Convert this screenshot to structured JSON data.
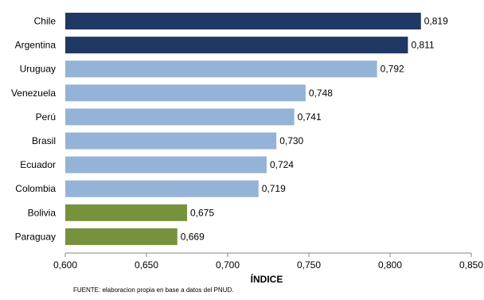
{
  "chart_data": {
    "type": "bar",
    "orientation": "horizontal",
    "categories": [
      "Chile",
      "Argentina",
      "Uruguay",
      "Venezuela",
      "Perú",
      "Brasil",
      "Ecuador",
      "Colombia",
      "Bolivia",
      "Paraguay"
    ],
    "values": [
      0.819,
      0.811,
      0.792,
      0.748,
      0.741,
      0.73,
      0.724,
      0.719,
      0.675,
      0.669
    ],
    "value_labels": [
      "0,819",
      "0,811",
      "0,792",
      "0,748",
      "0,741",
      "0,730",
      "0,724",
      "0,719",
      "0,675",
      "0,669"
    ],
    "bar_colors": [
      "#1f3864",
      "#1f3864",
      "#95b3d7",
      "#95b3d7",
      "#95b3d7",
      "#95b3d7",
      "#95b3d7",
      "#95b3d7",
      "#76923c",
      "#76923c"
    ],
    "xlabel": "ÍNDICE",
    "xlim": [
      0.6,
      0.85
    ],
    "xticks": [
      0.6,
      0.65,
      0.7,
      0.75,
      0.8,
      0.85
    ],
    "xtick_labels": [
      "0,600",
      "0,650",
      "0,700",
      "0,750",
      "0,800",
      "0,850"
    ],
    "grid": false,
    "legend": "none"
  },
  "source_note": "FUENTE: elaboracion propia en base a datos del PNUD."
}
